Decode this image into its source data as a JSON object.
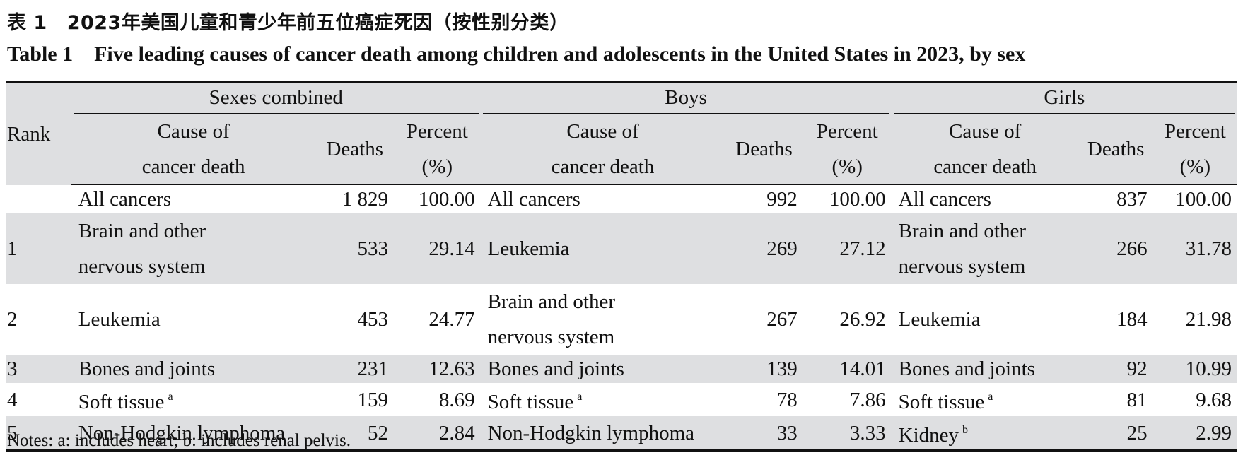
{
  "title_cn": {
    "label": "表 1",
    "text": "2023年美国儿童和青少年前五位癌症死因（按性别分类）"
  },
  "title_en": {
    "label": "Table 1",
    "text": "Five leading causes of cancer death among children and adolescents in the United States in 2023, by sex"
  },
  "header": {
    "rank": "Rank",
    "groups": [
      "Sexes combined",
      "Boys",
      "Girls"
    ],
    "cause_line1": "Cause of",
    "cause_line2": "cancer death",
    "deaths": "Deaths",
    "percent_line1": "Percent",
    "percent_line2": "(%)"
  },
  "rows": [
    {
      "rank": "",
      "sc": {
        "cause": [
          "All cancers"
        ],
        "deaths": "1 829",
        "pct": "100.00"
      },
      "boys": {
        "cause": [
          "All cancers"
        ],
        "deaths": "992",
        "pct": "100.00"
      },
      "girls": {
        "cause": [
          "All cancers"
        ],
        "deaths": "837",
        "pct": "100.00"
      }
    },
    {
      "rank": "1",
      "sc": {
        "cause": [
          "Brain and other",
          "nervous system"
        ],
        "deaths": "533",
        "pct": "29.14"
      },
      "boys": {
        "cause": [
          "Leukemia"
        ],
        "deaths": "269",
        "pct": "27.12"
      },
      "girls": {
        "cause": [
          "Brain and other",
          "nervous system"
        ],
        "deaths": "266",
        "pct": "31.78"
      }
    },
    {
      "rank": "2",
      "sc": {
        "cause": [
          "Leukemia"
        ],
        "deaths": "453",
        "pct": "24.77"
      },
      "boys": {
        "cause": [
          "Brain and other",
          "nervous system"
        ],
        "deaths": "267",
        "pct": "26.92"
      },
      "girls": {
        "cause": [
          "Leukemia"
        ],
        "deaths": "184",
        "pct": "21.98"
      }
    },
    {
      "rank": "3",
      "sc": {
        "cause": [
          "Bones and joints"
        ],
        "deaths": "231",
        "pct": "12.63"
      },
      "boys": {
        "cause": [
          "Bones and joints"
        ],
        "deaths": "139",
        "pct": "14.01"
      },
      "girls": {
        "cause": [
          "Bones and joints"
        ],
        "deaths": "92",
        "pct": "10.99"
      }
    },
    {
      "rank": "4",
      "sc": {
        "cause": [
          "Soft tissue"
        ],
        "sup": "a",
        "deaths": "159",
        "pct": "8.69"
      },
      "boys": {
        "cause": [
          "Soft tissue"
        ],
        "sup": "a",
        "deaths": "78",
        "pct": "7.86"
      },
      "girls": {
        "cause": [
          "Soft tissue"
        ],
        "sup": "a",
        "deaths": "81",
        "pct": "9.68"
      }
    },
    {
      "rank": "5",
      "sc": {
        "cause": [
          "Non-Hodgkin lymphoma"
        ],
        "deaths": "52",
        "pct": "2.84"
      },
      "boys": {
        "cause": [
          "Non-Hodgkin lymphoma"
        ],
        "deaths": "33",
        "pct": "3.33"
      },
      "girls": {
        "cause": [
          "Kidney"
        ],
        "sup": "b",
        "deaths": "25",
        "pct": "2.99"
      }
    }
  ],
  "notes": "Notes: a: includes heart; b: includes renal pelvis.",
  "colors": {
    "shade": "#dedfe1",
    "rule": "#111111"
  }
}
